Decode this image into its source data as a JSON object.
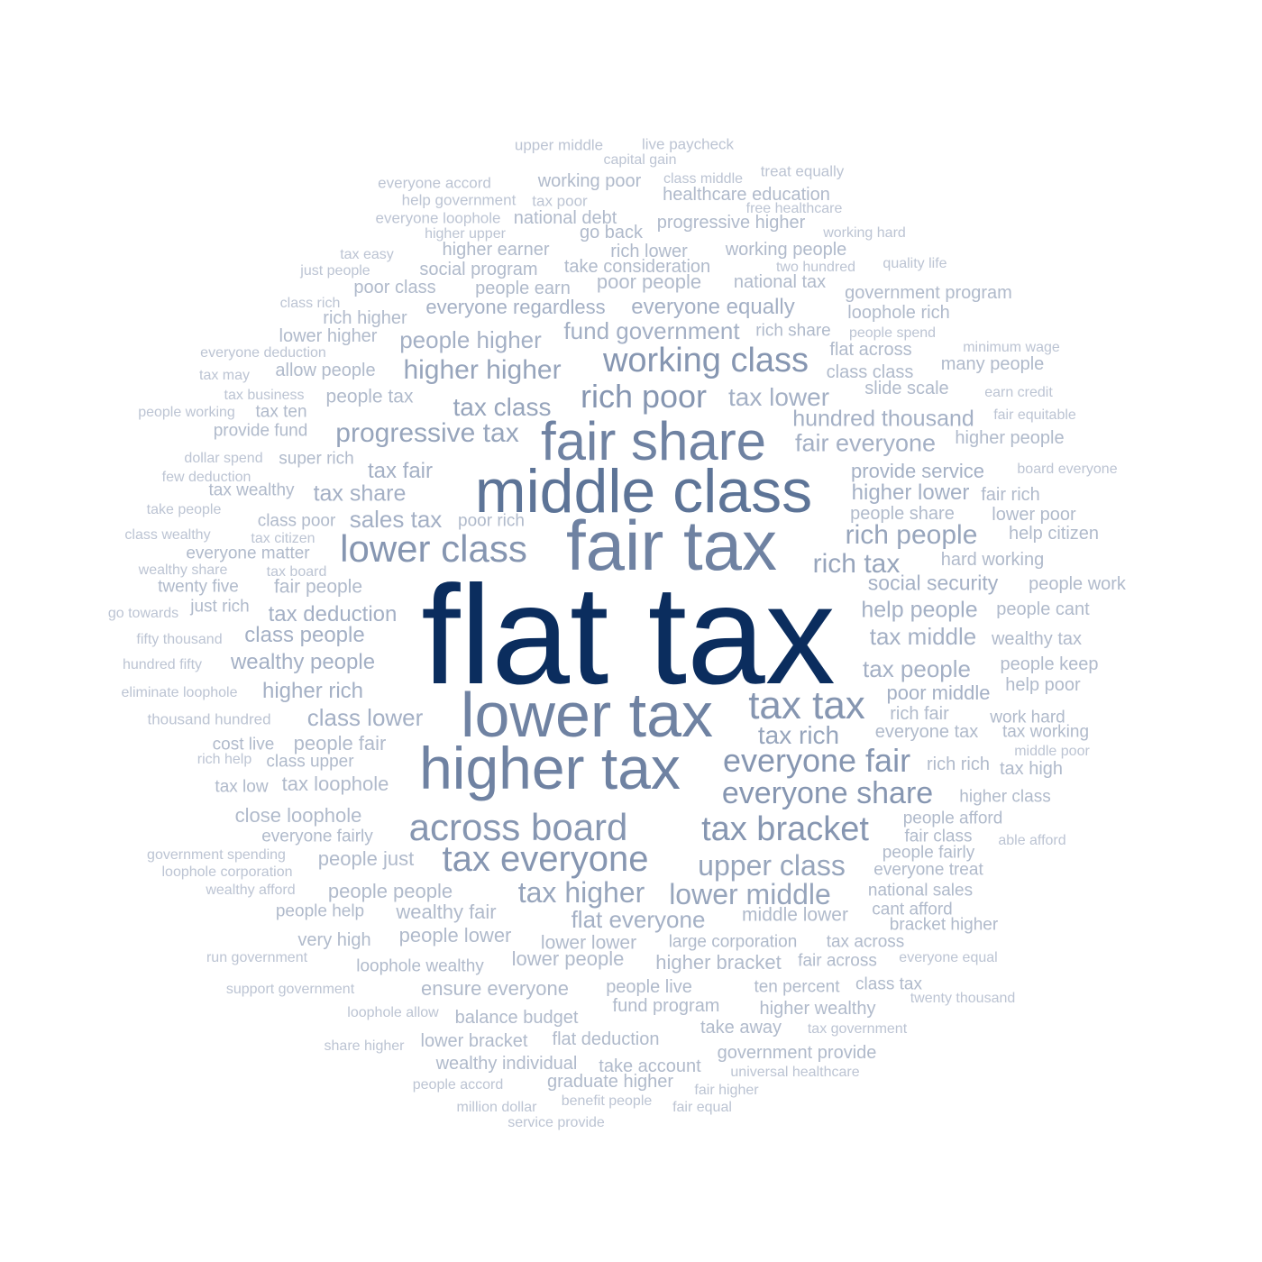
{
  "words": [
    {
      "text": "flat tax",
      "tier": 1
    },
    {
      "text": "middle class",
      "tier": 2
    },
    {
      "text": "fair share",
      "tier": 3
    },
    {
      "text": "fair tax",
      "tier": 3
    },
    {
      "text": "lower tax",
      "tier": 3
    },
    {
      "text": "higher tax",
      "tier": 3
    },
    {
      "text": "tax tax",
      "tier": 4
    },
    {
      "text": "lower class",
      "tier": 4
    },
    {
      "text": "working class",
      "tier": 4
    },
    {
      "text": "rich poor",
      "tier": 4
    },
    {
      "text": "across board",
      "tier": 4
    },
    {
      "text": "tax bracket",
      "tier": 4
    },
    {
      "text": "tax everyone",
      "tier": 4
    },
    {
      "text": "everyone fair",
      "tier": 4
    },
    {
      "text": "everyone share",
      "tier": 4
    },
    {
      "text": "progressive tax",
      "tier": 5
    },
    {
      "text": "higher higher",
      "tier": 5
    },
    {
      "text": "rich people",
      "tier": 5
    },
    {
      "text": "rich tax",
      "tier": 5
    },
    {
      "text": "upper class",
      "tier": 5
    },
    {
      "text": "lower middle",
      "tier": 5
    },
    {
      "text": "tax higher",
      "tier": 5
    },
    {
      "text": "tax rich",
      "tier": 5
    },
    {
      "text": "tax class",
      "tier": 5
    },
    {
      "text": "people higher",
      "tier": 6
    },
    {
      "text": "fund government",
      "tier": 6
    },
    {
      "text": "tax lower",
      "tier": 6
    },
    {
      "text": "hundred thousand",
      "tier": 6
    },
    {
      "text": "fair everyone",
      "tier": 6
    },
    {
      "text": "tax share",
      "tier": 6
    },
    {
      "text": "sales tax",
      "tier": 6
    },
    {
      "text": "tax middle",
      "tier": 6
    },
    {
      "text": "tax people",
      "tier": 6
    },
    {
      "text": "help people",
      "tier": 6
    },
    {
      "text": "class lower",
      "tier": 6
    },
    {
      "text": "higher rich",
      "tier": 6
    },
    {
      "text": "wealthy people",
      "tier": 6
    },
    {
      "text": "class people",
      "tier": 6
    },
    {
      "text": "tax deduction",
      "tier": 6
    },
    {
      "text": "flat everyone",
      "tier": 6
    },
    {
      "text": "everyone regardless",
      "tier": 6
    },
    {
      "text": "everyone equally",
      "tier": 6
    },
    {
      "text": "tax fair",
      "tier": 6
    },
    {
      "text": "poor middle",
      "tier": 6
    },
    {
      "text": "higher lower",
      "tier": 6
    },
    {
      "text": "social security",
      "tier": 6
    },
    {
      "text": "provide service",
      "tier": 6
    },
    {
      "text": "people people",
      "tier": 7
    },
    {
      "text": "wealthy fair",
      "tier": 7
    },
    {
      "text": "people lower",
      "tier": 7
    },
    {
      "text": "people just",
      "tier": 7
    },
    {
      "text": "close loophole",
      "tier": 7
    },
    {
      "text": "tax loophole",
      "tier": 7
    },
    {
      "text": "people fair",
      "tier": 7
    },
    {
      "text": "ensure everyone",
      "tier": 7
    },
    {
      "text": "lower people",
      "tier": 7
    },
    {
      "text": "higher bracket",
      "tier": 7
    },
    {
      "text": "lower lower",
      "tier": 7
    },
    {
      "text": "middle lower",
      "tier": 7
    },
    {
      "text": "fair people",
      "tier": 7
    },
    {
      "text": "people tax",
      "tier": 7
    },
    {
      "text": "allow people",
      "tier": 7
    },
    {
      "text": "rich higher",
      "tier": 7
    },
    {
      "text": "lower higher",
      "tier": 7
    },
    {
      "text": "poor class",
      "tier": 7
    },
    {
      "text": "social program",
      "tier": 7
    },
    {
      "text": "people earn",
      "tier": 7
    },
    {
      "text": "poor people",
      "tier": 7
    },
    {
      "text": "national tax",
      "tier": 7
    },
    {
      "text": "take consideration",
      "tier": 7
    },
    {
      "text": "higher earner",
      "tier": 7
    },
    {
      "text": "rich lower",
      "tier": 7
    },
    {
      "text": "working people",
      "tier": 7
    },
    {
      "text": "progressive higher",
      "tier": 7
    },
    {
      "text": "national debt",
      "tier": 7
    },
    {
      "text": "working poor",
      "tier": 7
    },
    {
      "text": "healthcare education",
      "tier": 7
    },
    {
      "text": "government program",
      "tier": 7
    },
    {
      "text": "loophole rich",
      "tier": 7
    },
    {
      "text": "flat across",
      "tier": 7
    },
    {
      "text": "class class",
      "tier": 7
    },
    {
      "text": "many people",
      "tier": 7
    },
    {
      "text": "slide scale",
      "tier": 7
    },
    {
      "text": "higher people",
      "tier": 7
    },
    {
      "text": "fair rich",
      "tier": 7
    },
    {
      "text": "people share",
      "tier": 7
    },
    {
      "text": "lower poor",
      "tier": 7
    },
    {
      "text": "help citizen",
      "tier": 7
    },
    {
      "text": "hard working",
      "tier": 7
    },
    {
      "text": "people work",
      "tier": 7
    },
    {
      "text": "people cant",
      "tier": 7
    },
    {
      "text": "wealthy tax",
      "tier": 7
    },
    {
      "text": "people keep",
      "tier": 7
    },
    {
      "text": "help poor",
      "tier": 7
    },
    {
      "text": "rich fair",
      "tier": 7
    },
    {
      "text": "work hard",
      "tier": 7
    },
    {
      "text": "everyone tax",
      "tier": 7
    },
    {
      "text": "tax working",
      "tier": 7
    },
    {
      "text": "rich rich",
      "tier": 7
    },
    {
      "text": "tax high",
      "tier": 7
    },
    {
      "text": "higher class",
      "tier": 7
    },
    {
      "text": "people afford",
      "tier": 7
    },
    {
      "text": "fair class",
      "tier": 7
    },
    {
      "text": "people fairly",
      "tier": 7
    },
    {
      "text": "everyone treat",
      "tier": 7
    },
    {
      "text": "national sales",
      "tier": 7
    },
    {
      "text": "cant afford",
      "tier": 7
    },
    {
      "text": "bracket higher",
      "tier": 7
    },
    {
      "text": "large corporation",
      "tier": 7
    },
    {
      "text": "tax across",
      "tier": 7
    },
    {
      "text": "fair across",
      "tier": 7
    },
    {
      "text": "people live",
      "tier": 7
    },
    {
      "text": "ten percent",
      "tier": 7
    },
    {
      "text": "class tax",
      "tier": 7
    },
    {
      "text": "fund program",
      "tier": 7
    },
    {
      "text": "higher wealthy",
      "tier": 7
    },
    {
      "text": "take away",
      "tier": 7
    },
    {
      "text": "balance budget",
      "tier": 7
    },
    {
      "text": "lower bracket",
      "tier": 7
    },
    {
      "text": "flat deduction",
      "tier": 7
    },
    {
      "text": "wealthy individual",
      "tier": 7
    },
    {
      "text": "take account",
      "tier": 7
    },
    {
      "text": "government provide",
      "tier": 7
    },
    {
      "text": "graduate higher",
      "tier": 7
    },
    {
      "text": "loophole wealthy",
      "tier": 7
    },
    {
      "text": "very high",
      "tier": 7
    },
    {
      "text": "people help",
      "tier": 7
    },
    {
      "text": "everyone fairly",
      "tier": 7
    },
    {
      "text": "class upper",
      "tier": 7
    },
    {
      "text": "cost live",
      "tier": 7
    },
    {
      "text": "tax low",
      "tier": 7
    },
    {
      "text": "super rich",
      "tier": 7
    },
    {
      "text": "provide fund",
      "tier": 7
    },
    {
      "text": "tax ten",
      "tier": 7
    },
    {
      "text": "tax wealthy",
      "tier": 7
    },
    {
      "text": "class poor",
      "tier": 7
    },
    {
      "text": "everyone matter",
      "tier": 7
    },
    {
      "text": "twenty five",
      "tier": 7
    },
    {
      "text": "just rich",
      "tier": 7
    },
    {
      "text": "go back",
      "tier": 7
    },
    {
      "text": "rich share",
      "tier": 7
    },
    {
      "text": "poor rich",
      "tier": 7
    },
    {
      "text": "upper middle",
      "tier": 8
    },
    {
      "text": "live paycheck",
      "tier": 8
    },
    {
      "text": "capital gain",
      "tier": 8
    },
    {
      "text": "everyone accord",
      "tier": 8
    },
    {
      "text": "class middle",
      "tier": 8
    },
    {
      "text": "treat equally",
      "tier": 8
    },
    {
      "text": "help government",
      "tier": 8
    },
    {
      "text": "tax poor",
      "tier": 8
    },
    {
      "text": "free healthcare",
      "tier": 8
    },
    {
      "text": "everyone loophole",
      "tier": 8
    },
    {
      "text": "higher upper",
      "tier": 8
    },
    {
      "text": "working hard",
      "tier": 8
    },
    {
      "text": "tax easy",
      "tier": 8
    },
    {
      "text": "just people",
      "tier": 8
    },
    {
      "text": "two hundred",
      "tier": 8
    },
    {
      "text": "quality life",
      "tier": 8
    },
    {
      "text": "class rich",
      "tier": 8
    },
    {
      "text": "people spend",
      "tier": 8
    },
    {
      "text": "minimum wage",
      "tier": 8
    },
    {
      "text": "everyone deduction",
      "tier": 8
    },
    {
      "text": "tax may",
      "tier": 8
    },
    {
      "text": "tax business",
      "tier": 8
    },
    {
      "text": "earn credit",
      "tier": 8
    },
    {
      "text": "people working",
      "tier": 8
    },
    {
      "text": "fair equitable",
      "tier": 8
    },
    {
      "text": "dollar spend",
      "tier": 8
    },
    {
      "text": "board everyone",
      "tier": 8
    },
    {
      "text": "few deduction",
      "tier": 8
    },
    {
      "text": "take people",
      "tier": 8
    },
    {
      "text": "class wealthy",
      "tier": 8
    },
    {
      "text": "tax citizen",
      "tier": 8
    },
    {
      "text": "wealthy share",
      "tier": 8
    },
    {
      "text": "tax board",
      "tier": 8
    },
    {
      "text": "go towards",
      "tier": 8
    },
    {
      "text": "fifty thousand",
      "tier": 8
    },
    {
      "text": "hundred fifty",
      "tier": 8
    },
    {
      "text": "eliminate loophole",
      "tier": 8
    },
    {
      "text": "thousand hundred",
      "tier": 8
    },
    {
      "text": "rich help",
      "tier": 8
    },
    {
      "text": "middle poor",
      "tier": 8
    },
    {
      "text": "government spending",
      "tier": 8
    },
    {
      "text": "loophole corporation",
      "tier": 8
    },
    {
      "text": "able afford",
      "tier": 8
    },
    {
      "text": "wealthy afford",
      "tier": 8
    },
    {
      "text": "run government",
      "tier": 8
    },
    {
      "text": "everyone equal",
      "tier": 8
    },
    {
      "text": "support government",
      "tier": 8
    },
    {
      "text": "twenty thousand",
      "tier": 8
    },
    {
      "text": "loophole allow",
      "tier": 8
    },
    {
      "text": "tax government",
      "tier": 8
    },
    {
      "text": "share higher",
      "tier": 8
    },
    {
      "text": "universal healthcare",
      "tier": 8
    },
    {
      "text": "people accord",
      "tier": 8
    },
    {
      "text": "fair higher",
      "tier": 8
    },
    {
      "text": "benefit people",
      "tier": 8
    },
    {
      "text": "million dollar",
      "tier": 8
    },
    {
      "text": "fair equal",
      "tier": 8
    },
    {
      "text": "service provide",
      "tier": 8
    }
  ],
  "palette": {
    "1": "#0b2d5e",
    "2": "#5d7497",
    "3": "#6f82a2",
    "4": "#8696b1",
    "5": "#97a5bc",
    "6": "#a4b0c5",
    "7": "#b0bacb",
    "8": "#bcc4d3"
  }
}
